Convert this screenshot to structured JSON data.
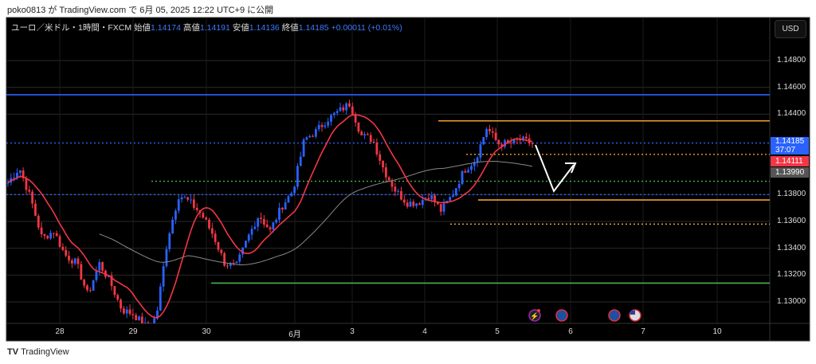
{
  "caption": "poko0813 が TradingView.com で 6月 05, 2025 12:22 UTC+9 に公開",
  "legend": {
    "symbol": "ユーロ／米ドル・1時間・FXCM",
    "open_label": "始値",
    "open": "1.14174",
    "high_label": "高値",
    "high": "1.14191",
    "low_label": "安値",
    "low": "1.14136",
    "close_label": "終値",
    "close": "1.14185",
    "change": "+0.00011 (+0.01%)"
  },
  "currency_button": "USD",
  "current_price": {
    "price": "1.14185",
    "countdown": "37:07"
  },
  "ma_fast_label": "1.14111",
  "ma_slow_label": "1.13990",
  "colors": {
    "up": "#2962ff",
    "down": "#f23645",
    "ma_fast": "#f23645",
    "ma_slow": "#888888",
    "orange": "#f0a030",
    "green": "#4caf50",
    "blue": "#2962ff"
  },
  "footer_logo": "TradingView",
  "events": [
    {
      "icon": "lightning-icon"
    },
    {
      "icon": "eu-flag-icon"
    },
    {
      "icon": "eu-flag-icon"
    },
    {
      "icon": "us-flag-icon"
    }
  ],
  "chart_data": {
    "type": "candlestick",
    "title": "EUR/USD 1H FXCM",
    "ylim": [
      1.128,
      1.149
    ],
    "y_ticks": [
      "1.14800",
      "1.14600",
      "1.14400",
      "1.13800",
      "1.13600",
      "1.13400",
      "1.13200",
      "1.13000"
    ],
    "x_ticks": [
      "28",
      "29",
      "30",
      "6月",
      "3",
      "4",
      "5",
      "6",
      "7",
      "10"
    ],
    "approx_close_path": [
      1.1389,
      1.14,
      1.1377,
      1.1347,
      1.1353,
      1.1335,
      1.1329,
      1.1305,
      1.1329,
      1.1314,
      1.1294,
      1.1291,
      1.1282,
      1.1288,
      1.1347,
      1.138,
      1.1374,
      1.1365,
      1.135,
      1.1329,
      1.1326,
      1.1347,
      1.1365,
      1.1353,
      1.1371,
      1.1383,
      1.1421,
      1.1427,
      1.1436,
      1.1442,
      1.1448,
      1.1424,
      1.1421,
      1.1398,
      1.1383,
      1.1374,
      1.1374,
      1.138,
      1.1368,
      1.138,
      1.1398,
      1.1406,
      1.143,
      1.1418,
      1.1418,
      1.1421,
      1.1418
    ],
    "levels": [
      {
        "price": 1.14545,
        "style": "solid",
        "color": "blue"
      },
      {
        "price": 1.1435,
        "style": "solid",
        "color": "orange"
      },
      {
        "price": 1.14185,
        "style": "dotted",
        "color": "blue"
      },
      {
        "price": 1.141,
        "style": "dotted",
        "color": "orange"
      },
      {
        "price": 1.139,
        "style": "dotted",
        "color": "green"
      },
      {
        "price": 1.138,
        "style": "dotted",
        "color": "blue"
      },
      {
        "price": 1.1376,
        "style": "solid",
        "color": "orange"
      },
      {
        "price": 1.1358,
        "style": "dotted",
        "color": "orange"
      },
      {
        "price": 1.1314,
        "style": "solid",
        "color": "green"
      }
    ],
    "moving_averages": [
      "fast (red)",
      "slow (gray)"
    ]
  }
}
